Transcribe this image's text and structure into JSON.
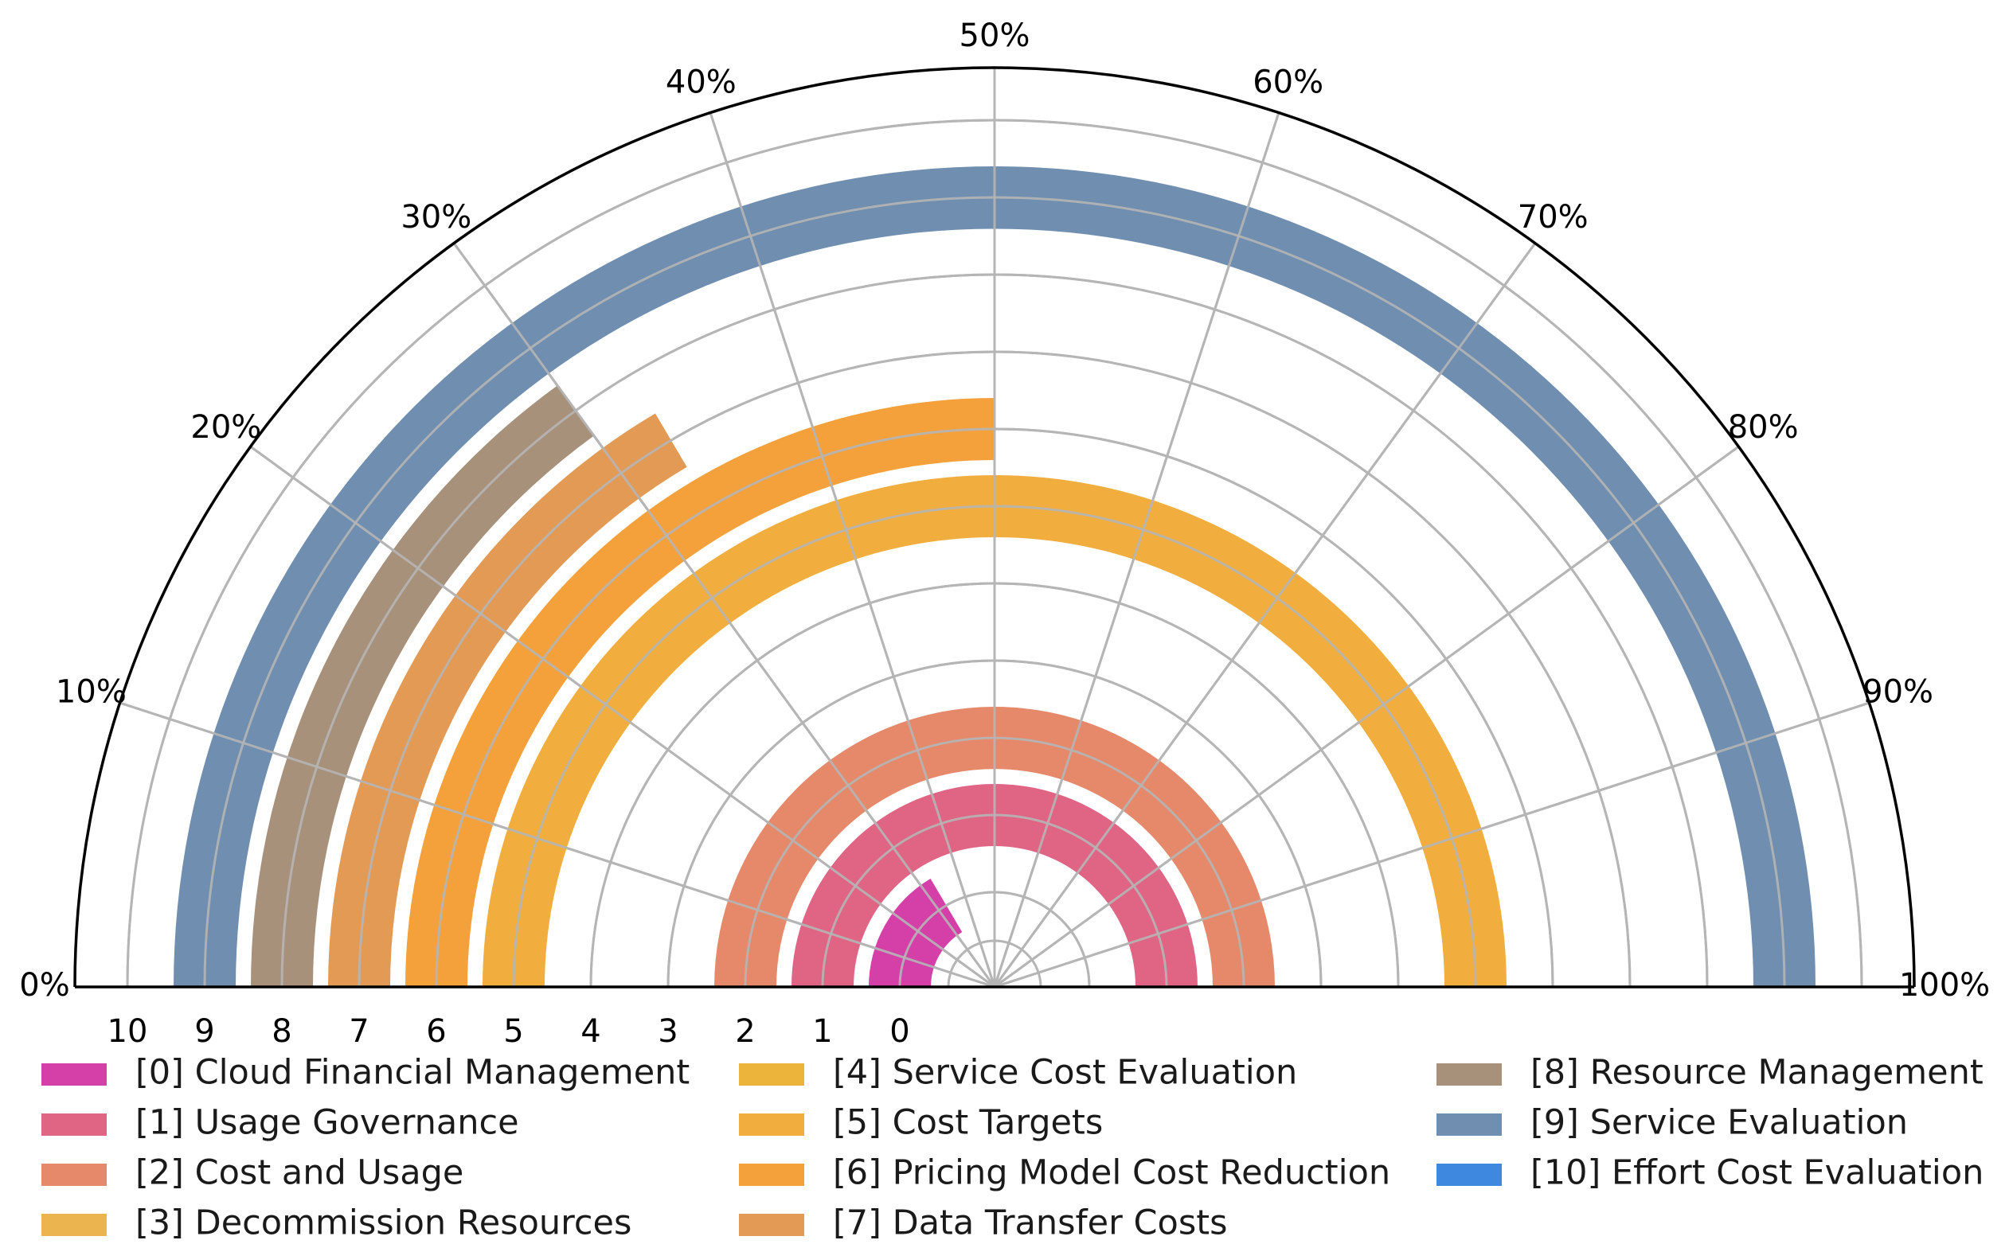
{
  "chart_data": {
    "type": "radial-bar",
    "title": "",
    "angle_ticks": [
      "0%",
      "10%",
      "20%",
      "30%",
      "40%",
      "50%",
      "60%",
      "70%",
      "80%",
      "90%",
      "100%"
    ],
    "ring_ticks": [
      "10",
      "9",
      "8",
      "7",
      "6",
      "5",
      "4",
      "3",
      "2",
      "1",
      "0"
    ],
    "xlim": [
      0,
      100
    ],
    "grid": true,
    "legend_position": "bottom",
    "series": [
      {
        "index": 0,
        "name": "[0] Cloud Financial Management",
        "value": 33,
        "color": "#d43fa8"
      },
      {
        "index": 1,
        "name": "[1] Usage Governance",
        "value": 100,
        "color": "#e06585"
      },
      {
        "index": 2,
        "name": "[2] Cost and Usage",
        "value": 100,
        "color": "#e5896a"
      },
      {
        "index": 3,
        "name": "[3] Decommission Resources",
        "value": 0,
        "color": "#ebb44e"
      },
      {
        "index": 4,
        "name": "[4] Service Cost Evaluation",
        "value": 0,
        "color": "#edb43c"
      },
      {
        "index": 5,
        "name": "[5] Cost Targets",
        "value": 100,
        "color": "#f1ae3e"
      },
      {
        "index": 6,
        "name": "[6] Pricing Model Cost Reduction",
        "value": 50,
        "color": "#f4a13c"
      },
      {
        "index": 7,
        "name": "[7] Data Transfer Costs",
        "value": 33,
        "color": "#e39a55"
      },
      {
        "index": 8,
        "name": "[8] Resource Management",
        "value": 30,
        "color": "#a8917b"
      },
      {
        "index": 9,
        "name": "[9] Service Evaluation",
        "value": 100,
        "color": "#6f8eb0"
      },
      {
        "index": 10,
        "name": "[10] Effort Cost Evaluation",
        "value": 0,
        "color": "#3f88e0"
      }
    ]
  }
}
